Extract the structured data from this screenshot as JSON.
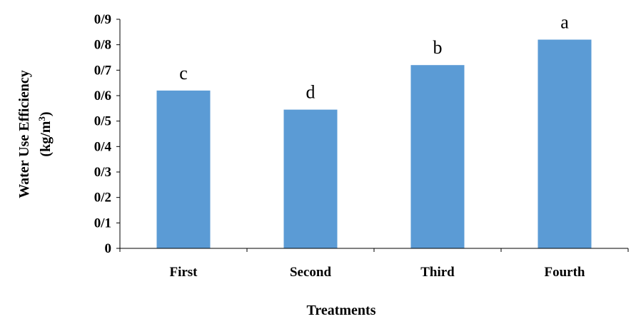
{
  "chart_data": {
    "type": "bar",
    "categories": [
      "First",
      "Second",
      "Third",
      "Fourth"
    ],
    "values": [
      0.62,
      0.545,
      0.72,
      0.82
    ],
    "bar_labels": [
      "c",
      "d",
      "b",
      "a"
    ],
    "yticks": [
      "0",
      "0/1",
      "0/2",
      "0/3",
      "0/4",
      "0/5",
      "0/6",
      "0/7",
      "0/8",
      "0/9"
    ],
    "ylim": [
      0,
      0.9
    ],
    "xlabel": "Treatments",
    "ylabel_line1": "Water Use Efficiency",
    "ylabel_line2": "(kg/m",
    "ylabel_sup": "3",
    "ylabel_close": ")",
    "bar_color": "#5b9bd5",
    "grid": false
  }
}
